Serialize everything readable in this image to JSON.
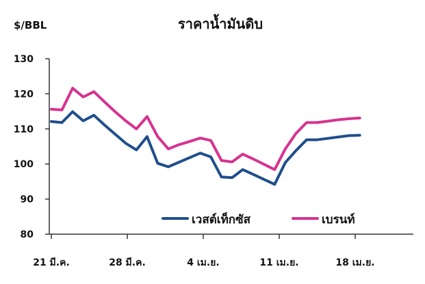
{
  "chart_data": {
    "type": "line",
    "title": "ราคาน้ำมันดิบ",
    "ylabel": "$/BBL",
    "xlabel": "",
    "ylim": [
      80,
      130
    ],
    "y_ticks": [
      80,
      90,
      100,
      110,
      120,
      130
    ],
    "x_tick_labels": [
      "21 มี.ค.",
      "28 มี.ค.",
      "4 เม.ย.",
      "11 เม.ย.",
      "18 เม.ย."
    ],
    "x_tick_positions": [
      0,
      5,
      10,
      15,
      20
    ],
    "grid": false,
    "legend_position": "bottom-center",
    "series": [
      {
        "name": "เวสต์เท็กซัส",
        "color": "#1f4e8c",
        "x": [
          0,
          0.7,
          1.4,
          2.1,
          2.8,
          3.5,
          4.2,
          4.9,
          5.6,
          6.3,
          7.0,
          7.7,
          8.4,
          9.1,
          9.8,
          10.5,
          11.2,
          11.9,
          12.6,
          13.3,
          14.0,
          14.7,
          15.4,
          16.1,
          16.8,
          17.5,
          18.2,
          18.9,
          19.6,
          20.3
        ],
        "values": [
          112.1,
          111.8,
          114.9,
          112.3,
          113.9,
          111.1,
          108.5,
          105.9,
          104.0,
          107.8,
          100.2,
          99.2,
          100.5,
          101.8,
          103.1,
          102.0,
          96.3,
          96.1,
          98.4,
          97.0,
          95.6,
          94.2,
          100.4,
          103.8,
          106.9,
          106.9,
          107.3,
          107.7,
          108.1,
          108.2
        ]
      },
      {
        "name": "เบรนท์",
        "color": "#d6338f",
        "x": [
          0,
          0.7,
          1.4,
          2.1,
          2.8,
          3.5,
          4.2,
          4.9,
          5.6,
          6.3,
          7.0,
          7.7,
          8.4,
          9.1,
          9.8,
          10.5,
          11.2,
          11.9,
          12.6,
          13.3,
          14.0,
          14.7,
          15.4,
          16.1,
          16.8,
          17.5,
          18.2,
          18.9,
          19.6,
          20.3
        ],
        "values": [
          115.6,
          115.4,
          121.6,
          119.1,
          120.6,
          117.7,
          114.9,
          112.3,
          110.0,
          113.5,
          107.8,
          104.3,
          105.5,
          106.4,
          107.4,
          106.7,
          101.0,
          100.6,
          102.8,
          101.4,
          99.9,
          98.4,
          104.3,
          108.7,
          111.8,
          111.8,
          112.2,
          112.6,
          112.9,
          113.1
        ]
      }
    ]
  }
}
